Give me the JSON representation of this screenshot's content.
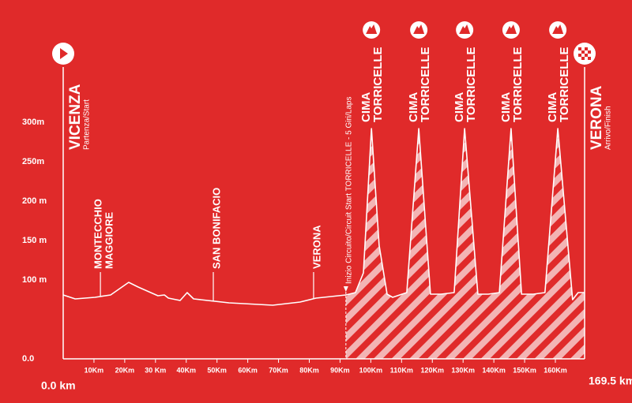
{
  "chart_data": {
    "type": "line",
    "start": {
      "name": "VICENZA",
      "subtitle": "Partenza/Start",
      "label": "0.0 km"
    },
    "finish": {
      "name": "VERONA",
      "subtitle": "Arrivo/Finish",
      "label": "169.5 km"
    },
    "x": [
      0,
      3.9,
      10.3,
      15.4,
      21.3,
      24.4,
      30.8,
      32.9,
      34.2,
      38,
      40.3,
      42.4,
      53.9,
      68.1,
      77,
      82.2,
      91.9,
      95,
      97.6,
      100.2,
      102.7,
      105.3,
      107.1,
      111.7,
      115.6,
      119.4,
      122.8,
      127.1,
      130.5,
      134.8,
      138.2,
      141.8,
      145.6,
      149,
      152.8,
      156.6,
      160.8,
      165.6,
      167.4,
      169.5
    ],
    "values": [
      81,
      76,
      78,
      81,
      97,
      91,
      80,
      81,
      77,
      74,
      84,
      76,
      71,
      68,
      72,
      77,
      81,
      84,
      109,
      292,
      144,
      82,
      78,
      84,
      292,
      82,
      82,
      84,
      292,
      82,
      82,
      84,
      292,
      82,
      82,
      84,
      292,
      75,
      84,
      84
    ],
    "color": "#ffffff",
    "xlim": [
      0,
      169.5
    ],
    "xticks": [
      {
        "value": 10,
        "label": "10Km"
      },
      {
        "value": 20,
        "label": "20Km"
      },
      {
        "value": 30,
        "label": "30 Km"
      },
      {
        "value": 40,
        "label": "40Km"
      },
      {
        "value": 50,
        "label": "50Km"
      },
      {
        "value": 60,
        "label": "60Km"
      },
      {
        "value": 70,
        "label": "70Km"
      },
      {
        "value": 80,
        "label": "80Km"
      },
      {
        "value": 90,
        "label": "90Km"
      },
      {
        "value": 100,
        "label": "100Km"
      },
      {
        "value": 110,
        "label": "110Km"
      },
      {
        "value": 120,
        "label": "120Km"
      },
      {
        "value": 130,
        "label": "130Km"
      },
      {
        "value": 140,
        "label": "140Km"
      },
      {
        "value": 150,
        "label": "150Km"
      },
      {
        "value": 160,
        "label": "160Km"
      }
    ],
    "ylim": [
      0,
      320
    ],
    "yticks": [
      {
        "value": 0,
        "label": "0.0"
      },
      {
        "value": 100,
        "label": "100 m"
      },
      {
        "value": 150,
        "label": "150 m"
      },
      {
        "value": 200,
        "label": "200 m"
      },
      {
        "value": 250,
        "label": "250m"
      },
      {
        "value": 300,
        "label": "300m"
      }
    ],
    "landmarks": [
      {
        "km": 12.1,
        "lines": [
          "MONTECCHIO",
          "MAGGIORE"
        ]
      },
      {
        "km": 48.8,
        "lines": [
          "SAN BONIFACIO"
        ]
      },
      {
        "km": 81.4,
        "lines": [
          "VERONA"
        ]
      }
    ],
    "circuit": {
      "km": 91.9,
      "label": "Inizio Circuito/Circuit Start TORRICELLE - 5 Giri/Laps"
    },
    "climbs": [
      {
        "km": 100.2,
        "lines": [
          "CIMA",
          "TORRICELLE"
        ]
      },
      {
        "km": 115.6,
        "lines": [
          "CIMA",
          "TORRICELLE"
        ]
      },
      {
        "km": 130.5,
        "lines": [
          "CIMA",
          "TORRICELLE"
        ]
      },
      {
        "km": 145.6,
        "lines": [
          "CIMA",
          "TORRICELLE"
        ]
      },
      {
        "km": 160.8,
        "lines": [
          "CIMA",
          "TORRICELLE"
        ]
      }
    ]
  }
}
